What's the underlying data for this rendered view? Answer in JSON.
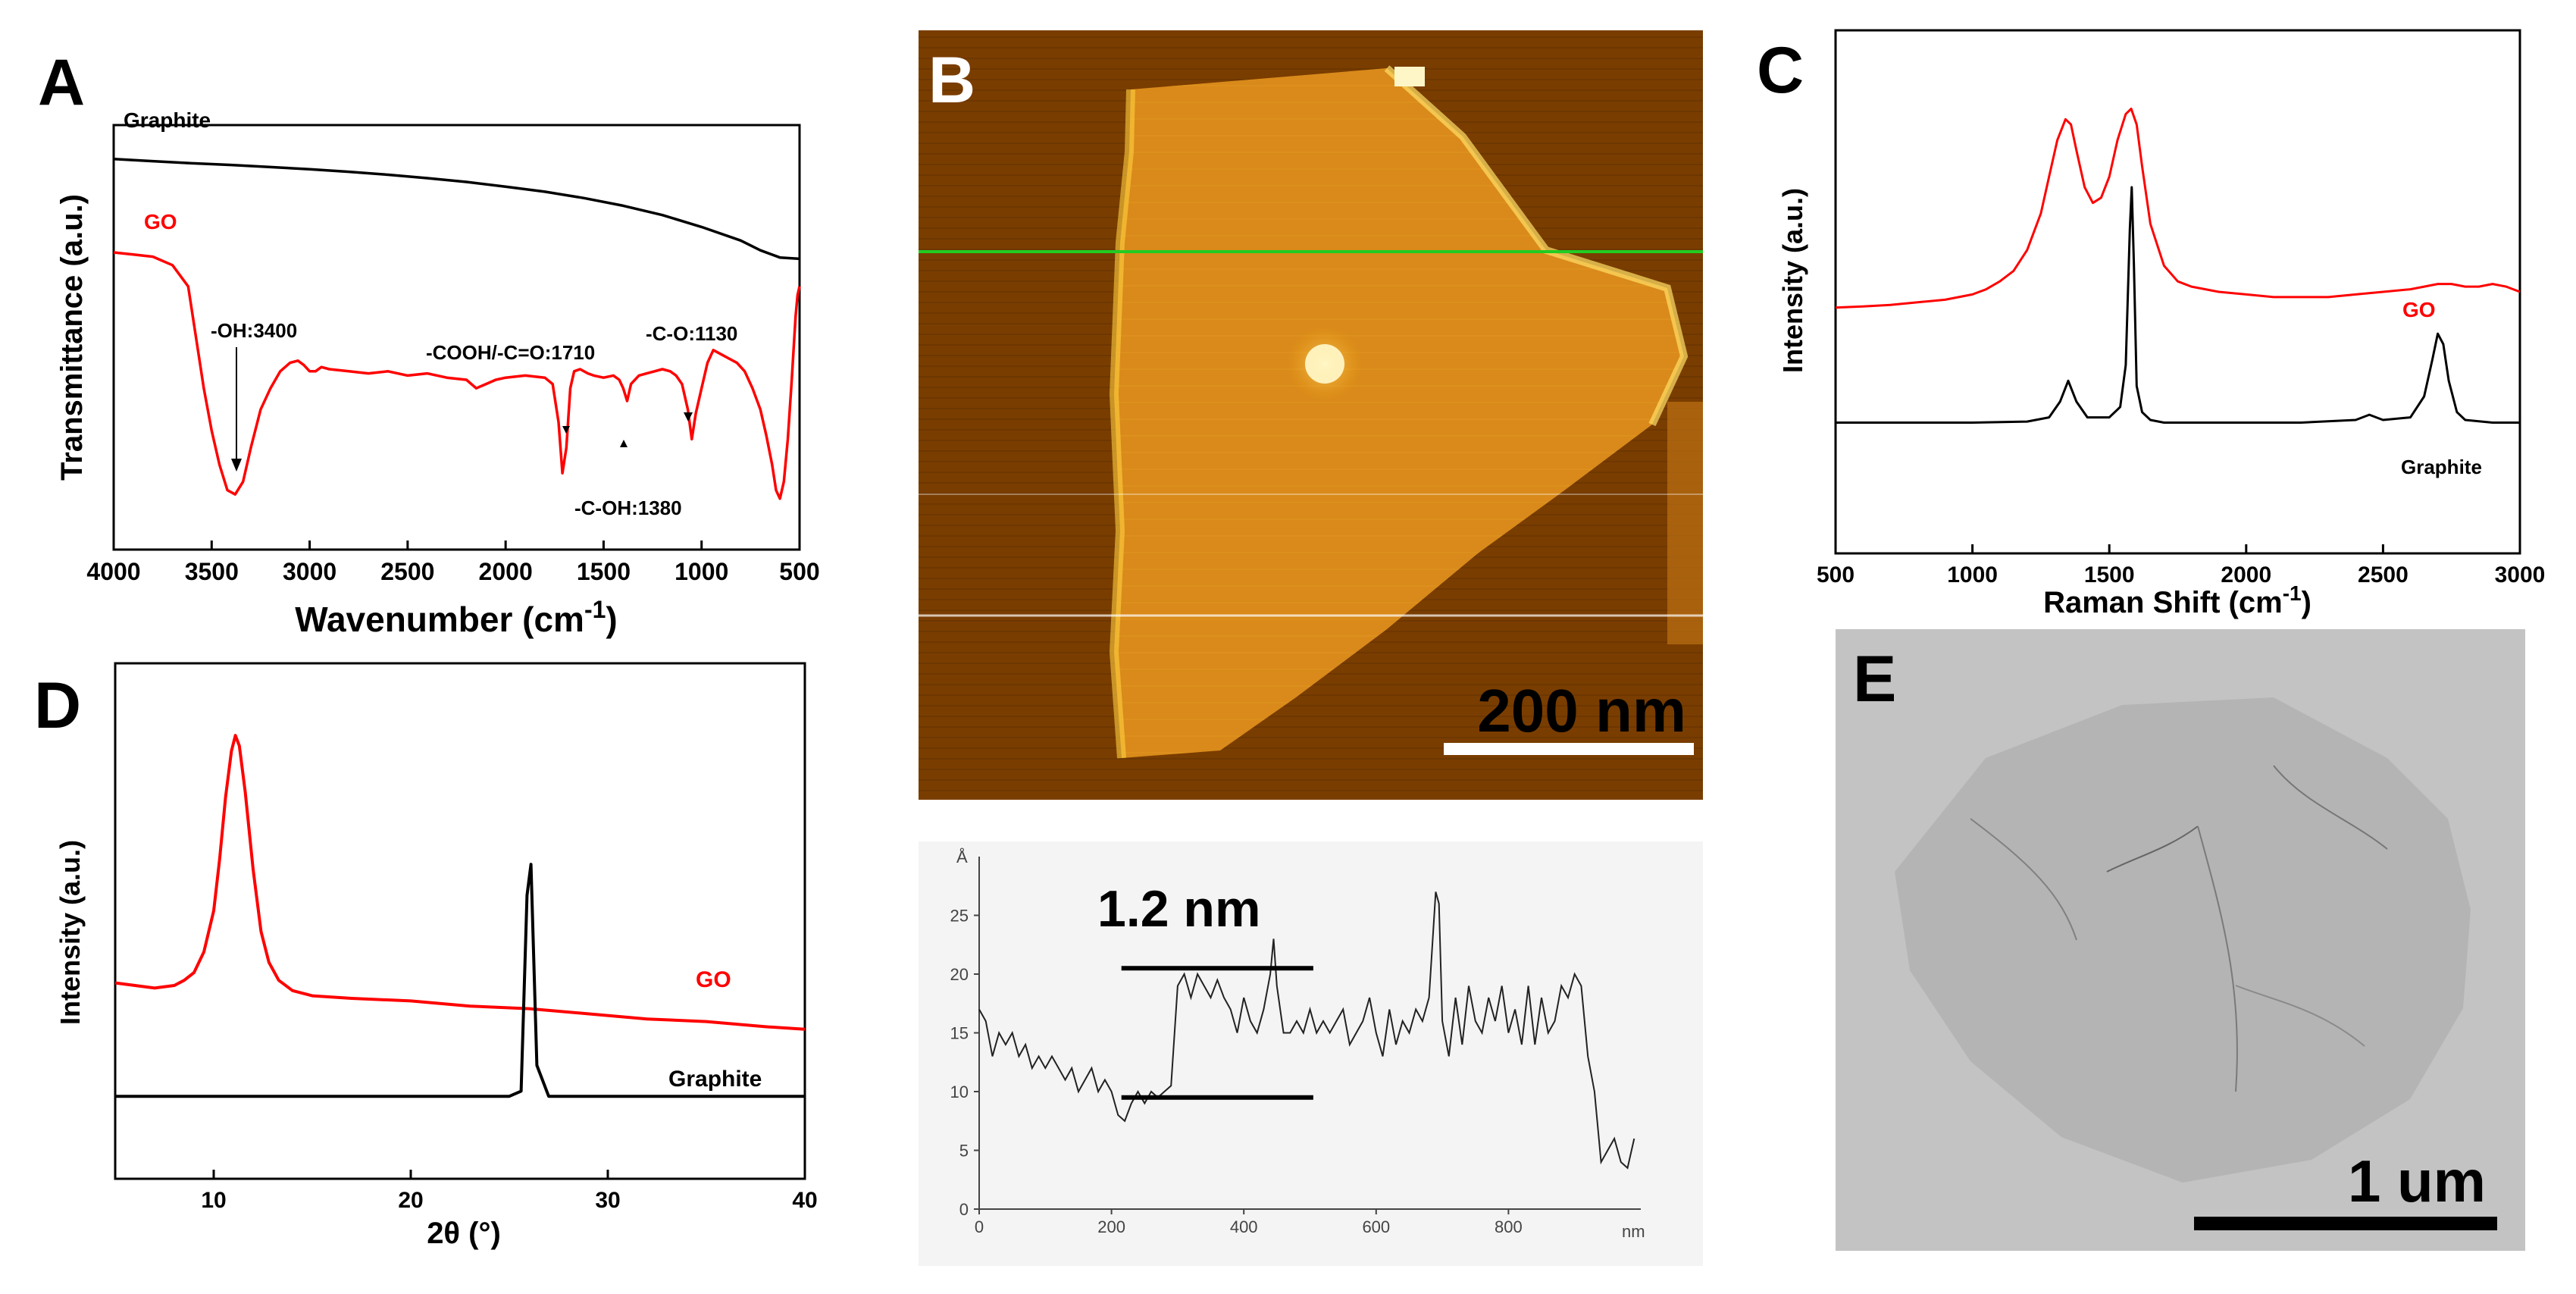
{
  "chart_data": [
    {
      "panel": "A",
      "type": "line",
      "xlabel": "Wavenumber (cm",
      "xlabel_sup": "-1",
      "xlabel_close": ")",
      "ylabel": "Transmittance (a.u.)",
      "xlim": [
        4000,
        500
      ],
      "ylim": [
        0,
        100
      ],
      "x_ticks": [
        4000,
        3500,
        3000,
        2500,
        2000,
        1500,
        1000,
        500
      ],
      "series": [
        {
          "name": "Graphite",
          "color": "#000000",
          "x": [
            4000,
            3800,
            3600,
            3400,
            3200,
            3000,
            2800,
            2600,
            2400,
            2200,
            2000,
            1800,
            1600,
            1400,
            1200,
            1000,
            800,
            700,
            600,
            500
          ],
          "y": [
            92,
            91.5,
            91,
            90.6,
            90.1,
            89.6,
            89,
            88.3,
            87.5,
            86.6,
            85.5,
            84.3,
            82.8,
            81,
            78.8,
            76,
            72.8,
            70.5,
            68.8,
            68.5
          ]
        },
        {
          "name": "GO",
          "color": "#ff0000",
          "x": [
            4000,
            3900,
            3800,
            3700,
            3620,
            3580,
            3540,
            3500,
            3460,
            3420,
            3380,
            3340,
            3300,
            3250,
            3200,
            3150,
            3100,
            3060,
            3030,
            3000,
            2970,
            2940,
            2900,
            2800,
            2700,
            2600,
            2500,
            2400,
            2300,
            2200,
            2150,
            2100,
            2050,
            2000,
            1900,
            1800,
            1760,
            1730,
            1710,
            1690,
            1670,
            1650,
            1620,
            1580,
            1550,
            1500,
            1450,
            1420,
            1400,
            1380,
            1360,
            1320,
            1280,
            1240,
            1200,
            1160,
            1130,
            1100,
            1070,
            1050,
            1030,
            1000,
            970,
            940,
            900,
            860,
            820,
            780,
            740,
            700,
            670,
            640,
            620,
            600,
            580,
            560,
            540,
            520,
            510,
            500
          ],
          "y": [
            70,
            69.5,
            69,
            67,
            62,
            50,
            38,
            28,
            20,
            14,
            13,
            16,
            24,
            33,
            38,
            42,
            44,
            44.5,
            43.5,
            42,
            42,
            43,
            42.5,
            42,
            41.5,
            42,
            41,
            41.5,
            40.5,
            40,
            38,
            39,
            40,
            40.5,
            41,
            40.5,
            39,
            30,
            18,
            24,
            38,
            42,
            42.5,
            41.5,
            41,
            40.5,
            41,
            40,
            38,
            35,
            39,
            41,
            41.5,
            42,
            42.5,
            42,
            41,
            39,
            33,
            26,
            32,
            38,
            44,
            47,
            46,
            45,
            44,
            42,
            38,
            33,
            27,
            20,
            14,
            12,
            16,
            26,
            40,
            55,
            60,
            62
          ]
        }
      ],
      "labels": {
        "graphite": "Graphite",
        "go": "GO"
      },
      "annotations": [
        "-OH:3400",
        "-COOH/-C=O:1710",
        "-C-O:1130",
        "-C-OH:1380"
      ]
    },
    {
      "panel": "B",
      "type": "image",
      "description_label": "AFM height image",
      "scalebar_label": "200 nm",
      "profile": {
        "type": "line",
        "y_unit": "Å",
        "x_unit": "nm",
        "xlim": [
          0,
          1000
        ],
        "ylim": [
          0,
          30
        ],
        "x_ticks": [
          0,
          200,
          400,
          600,
          800
        ],
        "y_ticks": [
          0,
          5,
          10,
          15,
          20,
          25
        ],
        "step_label": "1.2 nm",
        "step_levels": [
          20.5,
          9.5
        ],
        "x": [
          0,
          10,
          20,
          30,
          40,
          50,
          60,
          70,
          80,
          90,
          100,
          110,
          120,
          130,
          140,
          150,
          160,
          170,
          180,
          190,
          200,
          210,
          220,
          230,
          240,
          250,
          260,
          270,
          280,
          290,
          300,
          310,
          320,
          330,
          340,
          350,
          360,
          370,
          380,
          390,
          400,
          410,
          420,
          430,
          440,
          445,
          450,
          460,
          470,
          480,
          490,
          500,
          510,
          520,
          530,
          540,
          550,
          560,
          570,
          580,
          590,
          600,
          610,
          620,
          630,
          640,
          650,
          660,
          670,
          680,
          690,
          695,
          700,
          710,
          720,
          730,
          740,
          750,
          760,
          770,
          780,
          790,
          800,
          810,
          820,
          830,
          840,
          850,
          860,
          870,
          880,
          890,
          900,
          910,
          920,
          930,
          940,
          950,
          960,
          970,
          980,
          990
        ],
        "y": [
          17,
          16,
          13,
          15,
          14,
          15,
          13,
          14,
          12,
          13,
          12,
          13,
          12,
          11,
          12,
          10,
          11,
          12,
          10,
          11,
          10,
          8,
          7.5,
          9,
          10,
          9,
          10,
          9.5,
          10,
          10.5,
          19,
          20,
          18,
          20,
          19,
          18,
          19.5,
          18,
          17,
          15,
          18,
          16,
          15,
          17,
          20,
          23,
          19,
          15,
          15,
          16,
          15,
          17,
          15,
          16,
          15,
          16,
          17,
          14,
          15,
          16,
          18,
          15,
          13,
          17,
          14,
          16,
          15,
          17,
          16,
          18,
          27,
          26,
          16,
          13,
          18,
          14,
          19,
          16,
          15,
          18,
          16,
          19,
          15,
          17,
          14,
          19,
          14,
          18,
          15,
          16,
          19,
          18,
          20,
          19,
          13,
          10,
          4,
          5,
          6,
          4,
          3.5,
          6
        ]
      }
    },
    {
      "panel": "C",
      "type": "line",
      "xlabel": "Raman Shift (cm",
      "xlabel_sup": "-1",
      "xlabel_close": ")",
      "ylabel": "Intensity (a.u.)",
      "xlim": [
        500,
        3000
      ],
      "ylim": [
        0,
        100
      ],
      "x_ticks": [
        500,
        1000,
        1500,
        2000,
        2500,
        3000
      ],
      "series": [
        {
          "name": "GO",
          "color": "#ff0000",
          "x": [
            500,
            600,
            700,
            800,
            900,
            1000,
            1050,
            1100,
            1150,
            1200,
            1250,
            1280,
            1310,
            1340,
            1360,
            1380,
            1410,
            1440,
            1470,
            1500,
            1530,
            1560,
            1580,
            1600,
            1620,
            1650,
            1700,
            1750,
            1800,
            1900,
            2000,
            2100,
            2200,
            2300,
            2400,
            2500,
            2600,
            2650,
            2700,
            2750,
            2800,
            2850,
            2900,
            2950,
            3000
          ],
          "y": [
            47,
            47.2,
            47.5,
            48,
            48.5,
            49.5,
            50.5,
            52,
            54,
            58,
            65,
            72,
            79,
            83,
            82,
            77,
            70,
            67,
            68,
            72,
            79,
            84,
            85,
            82,
            74,
            63,
            55,
            52,
            51,
            50,
            49.5,
            49,
            49,
            49,
            49.5,
            50,
            50.5,
            51,
            51.5,
            51.5,
            51,
            51,
            51.5,
            51,
            50
          ]
        },
        {
          "name": "Graphite",
          "color": "#000000",
          "x": [
            500,
            1000,
            1200,
            1280,
            1320,
            1350,
            1380,
            1420,
            1500,
            1540,
            1560,
            1575,
            1582,
            1590,
            1600,
            1620,
            1650,
            1700,
            1800,
            2000,
            2200,
            2400,
            2450,
            2500,
            2600,
            2650,
            2680,
            2700,
            2720,
            2740,
            2770,
            2800,
            2900,
            3000
          ],
          "y": [
            25,
            25,
            25.2,
            26,
            29,
            33,
            29,
            26,
            26,
            28,
            36,
            62,
            70,
            55,
            32,
            27,
            25.5,
            25,
            25,
            25,
            25,
            25.5,
            26.5,
            25.5,
            26,
            30,
            37,
            42,
            40,
            33,
            27,
            25.5,
            25,
            25
          ]
        }
      ],
      "labels": {
        "go": "GO",
        "graphite": "Graphite"
      }
    },
    {
      "panel": "D",
      "type": "line",
      "xlabel": "2θ (°)",
      "ylabel": "Intensity (a.u.)",
      "xlim": [
        5,
        40
      ],
      "ylim": [
        0,
        100
      ],
      "x_ticks": [
        10,
        20,
        30,
        40
      ],
      "series": [
        {
          "name": "GO",
          "color": "#ff0000",
          "x": [
            5,
            6,
            7,
            8,
            8.5,
            9,
            9.5,
            10,
            10.3,
            10.6,
            10.9,
            11.1,
            11.3,
            11.6,
            12,
            12.4,
            12.8,
            13.3,
            14,
            15,
            17,
            20,
            23,
            26,
            29,
            32,
            35,
            38,
            40
          ],
          "y": [
            38,
            37.5,
            37,
            37.5,
            38.5,
            40,
            44,
            52,
            62,
            74,
            83,
            86,
            84,
            75,
            60,
            48,
            42,
            38.5,
            36.5,
            35.5,
            35,
            34.5,
            33.5,
            33,
            32,
            31,
            30.5,
            29.5,
            29
          ]
        },
        {
          "name": "Graphite",
          "color": "#000000",
          "x": [
            5,
            20,
            25,
            25.6,
            25.9,
            26.1,
            26.4,
            27,
            32,
            40
          ],
          "y": [
            16,
            16,
            16,
            17,
            55,
            61,
            22,
            16,
            16,
            16
          ]
        }
      ],
      "labels": {
        "go": "GO",
        "graphite": "Graphite"
      }
    },
    {
      "panel": "E",
      "type": "image",
      "description_label": "TEM image",
      "scalebar_label": "1 um"
    }
  ],
  "panel_letters": [
    "A",
    "B",
    "C",
    "D",
    "E"
  ]
}
